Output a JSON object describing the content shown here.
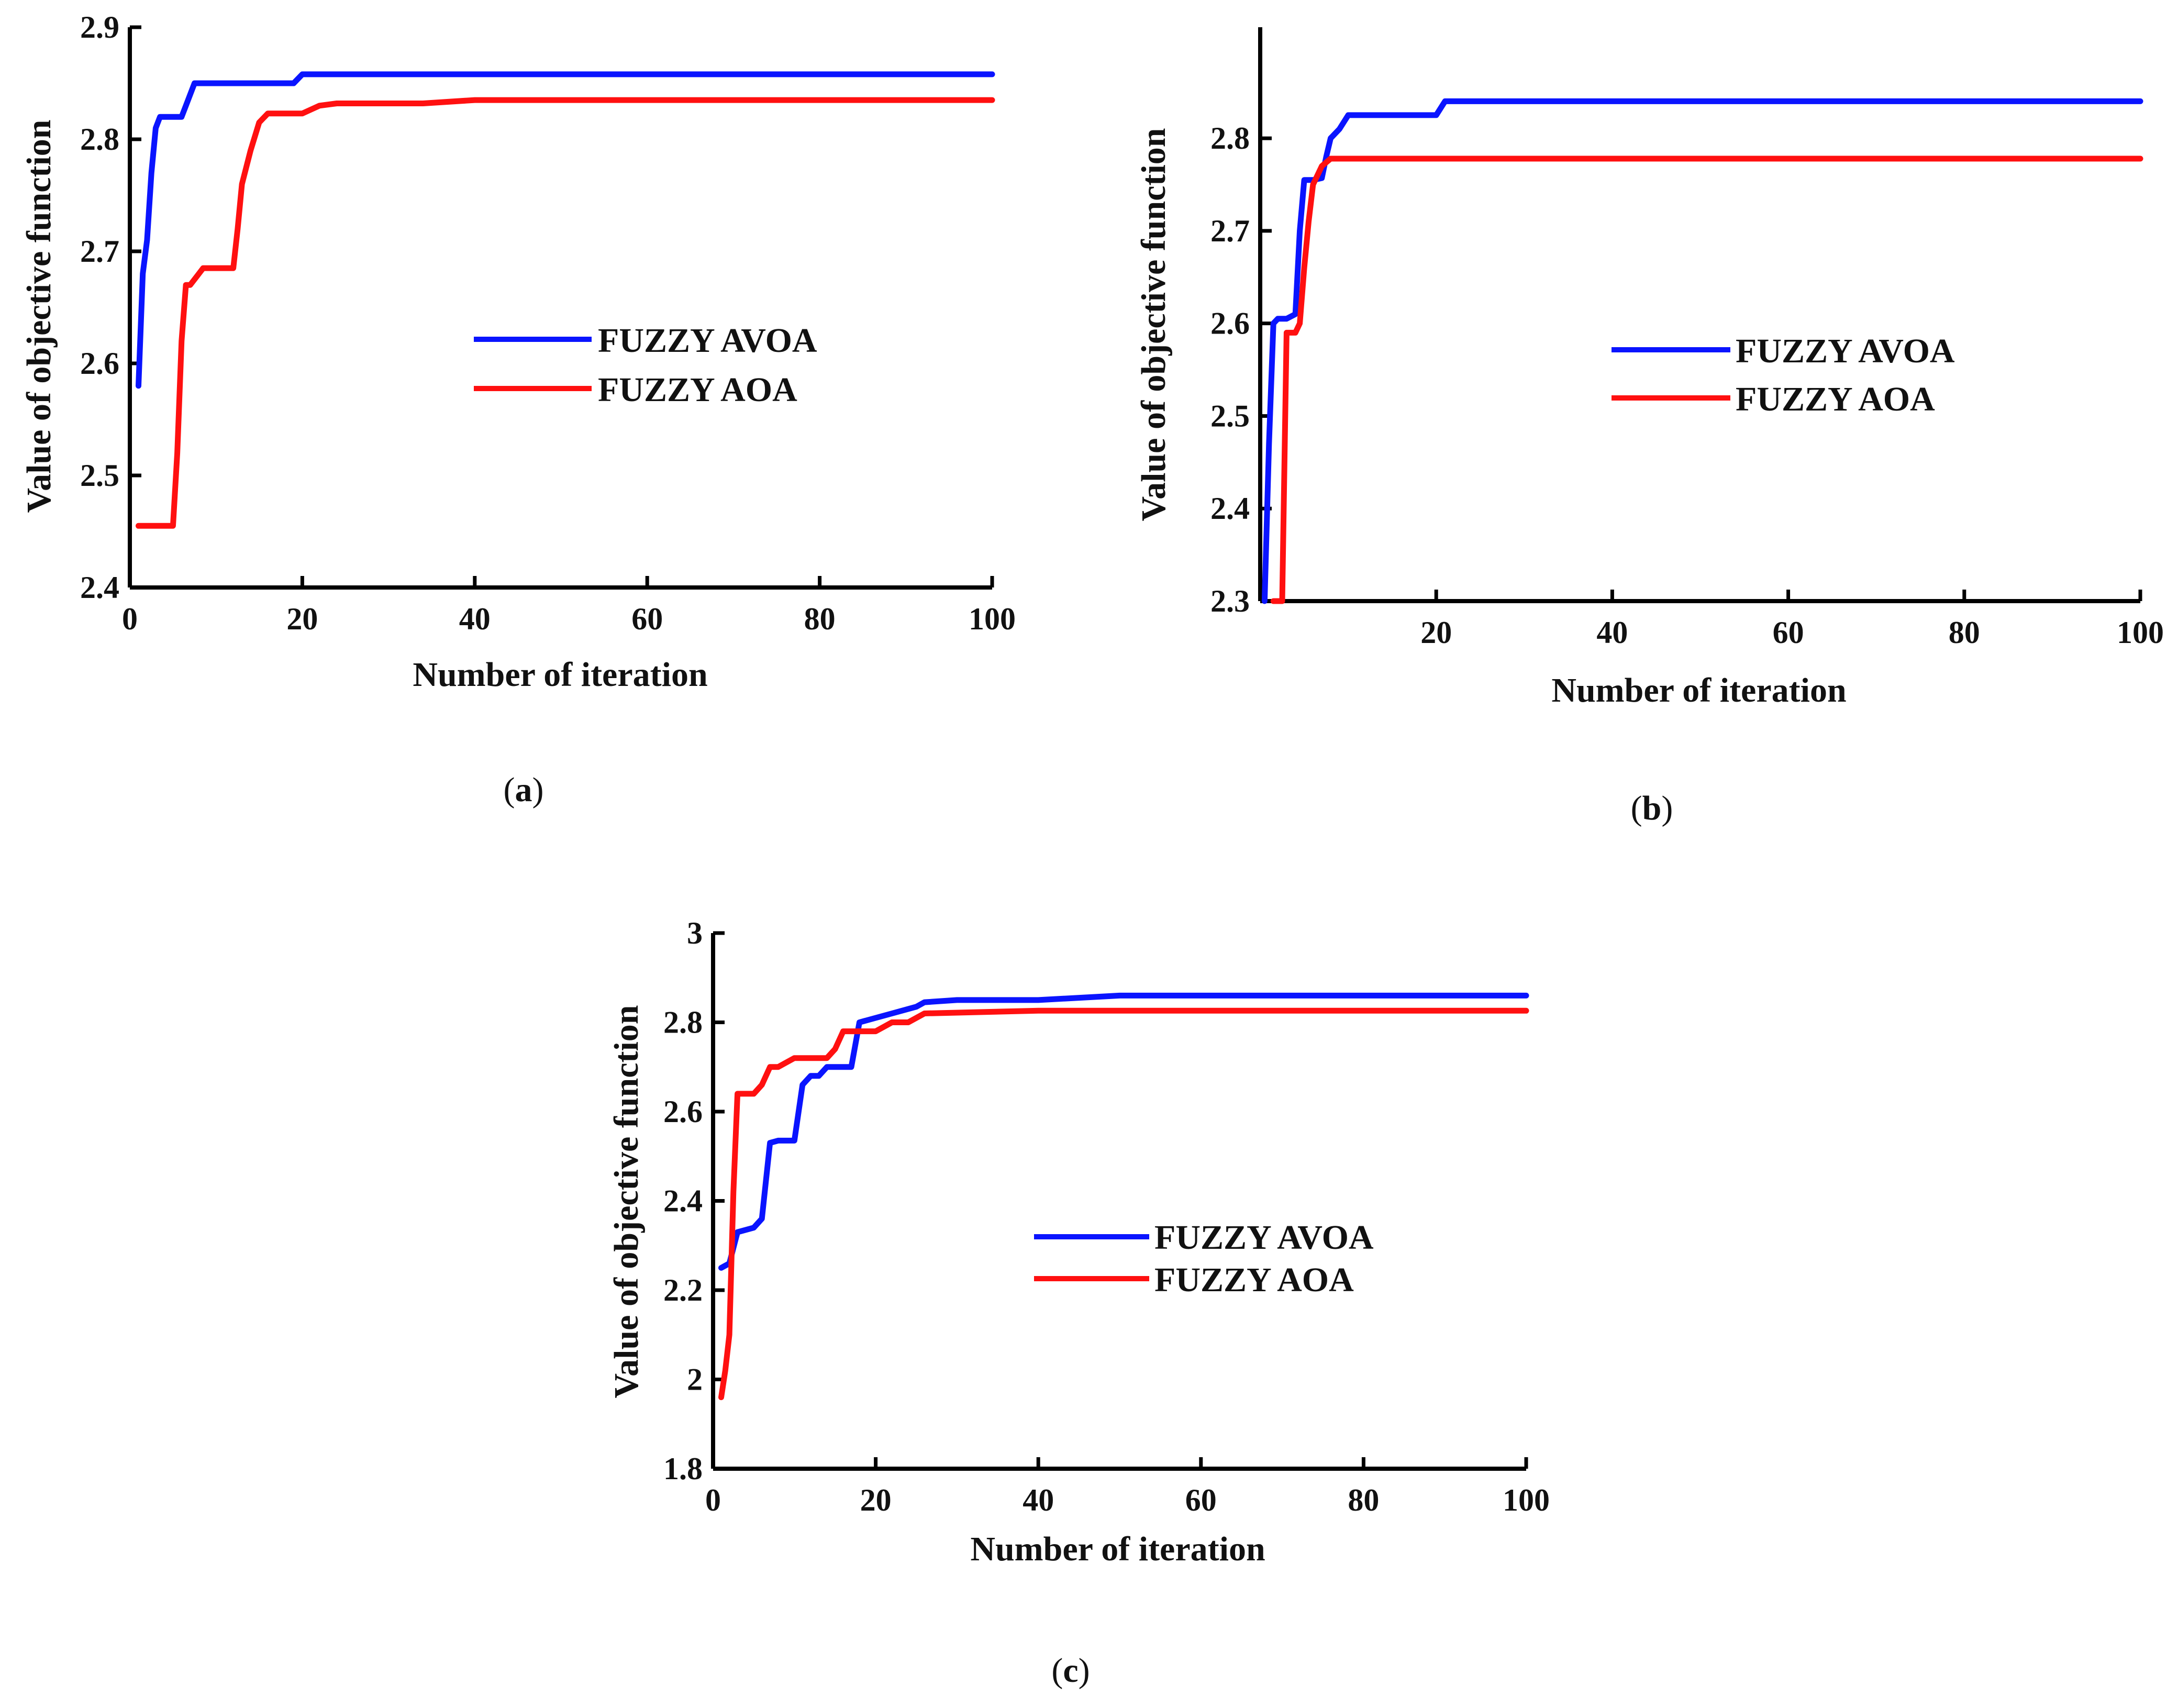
{
  "colors": {
    "fuzzy_avoa": "#0a14ff",
    "fuzzy_aoa": "#ff1010",
    "axis": "#000000"
  },
  "chart_data": [
    {
      "panel": "(a)",
      "panel_letter": "a",
      "type": "line",
      "xlabel": "Number of iteration",
      "ylabel": "Value of objective function",
      "xlim": [
        0,
        100
      ],
      "ylim": [
        2.4,
        2.9
      ],
      "xticks": [
        0,
        20,
        40,
        60,
        80,
        100
      ],
      "yticks": [
        2.4,
        2.5,
        2.6,
        2.7,
        2.8,
        2.9
      ],
      "xtick_labels": [
        "0",
        "20",
        "40",
        "60",
        "80",
        "100"
      ],
      "ytick_labels": [
        "2.4",
        "2.5",
        "2.6",
        "2.7",
        "2.8",
        "2.9"
      ],
      "legend_position": "center-right",
      "series": [
        {
          "name": "FUZZY AVOA",
          "color": "#0a14ff",
          "x": [
            1,
            1.5,
            2,
            2.5,
            3,
            3.5,
            4,
            6,
            6.5,
            7,
            7.5,
            19,
            20,
            100
          ],
          "y": [
            2.58,
            2.68,
            2.71,
            2.77,
            2.81,
            2.82,
            2.82,
            2.82,
            2.83,
            2.84,
            2.85,
            2.85,
            2.858,
            2.858
          ]
        },
        {
          "name": "FUZZY AOA",
          "color": "#ff1010",
          "x": [
            1,
            5,
            5.5,
            6,
            6.5,
            7,
            8,
            8.5,
            12,
            12.5,
            13,
            14,
            15,
            16,
            20,
            22,
            24,
            34,
            40,
            100
          ],
          "y": [
            2.455,
            2.455,
            2.52,
            2.62,
            2.67,
            2.67,
            2.68,
            2.685,
            2.685,
            2.72,
            2.76,
            2.79,
            2.815,
            2.823,
            2.823,
            2.83,
            2.832,
            2.832,
            2.835,
            2.835
          ]
        }
      ]
    },
    {
      "panel": "(b)",
      "panel_letter": "b",
      "type": "line",
      "xlabel": "Number of iteration",
      "ylabel": "Value of objective function",
      "xlim": [
        0,
        100
      ],
      "ylim": [
        2.3,
        2.92
      ],
      "xticks": [
        20,
        40,
        60,
        80,
        100
      ],
      "yticks": [
        2.3,
        2.4,
        2.5,
        2.6,
        2.7,
        2.8
      ],
      "xtick_labels": [
        "20",
        "40",
        "60",
        "80",
        "100"
      ],
      "ytick_labels": [
        "2.3",
        "2.4",
        "2.5",
        "2.6",
        "2.7",
        "2.8"
      ],
      "legend_position": "center-right",
      "series": [
        {
          "name": "FUZZY AVOA",
          "color": "#0a14ff",
          "x": [
            0.5,
            1,
            1.5,
            2,
            3,
            4,
            4.5,
            5,
            6,
            7,
            7.5,
            8,
            9,
            10,
            20,
            21,
            100
          ],
          "y": [
            2.3,
            2.47,
            2.6,
            2.605,
            2.605,
            2.61,
            2.7,
            2.755,
            2.755,
            2.757,
            2.78,
            2.8,
            2.81,
            2.825,
            2.825,
            2.84,
            2.84
          ]
        },
        {
          "name": "FUZZY AOA",
          "color": "#ff1010",
          "x": [
            1.5,
            2.5,
            3,
            4,
            4.5,
            5,
            5.5,
            6,
            7,
            8,
            100
          ],
          "y": [
            2.3,
            2.3,
            2.59,
            2.59,
            2.6,
            2.66,
            2.71,
            2.75,
            2.77,
            2.778,
            2.778
          ]
        }
      ]
    },
    {
      "panel": "(c)",
      "panel_letter": "c",
      "type": "line",
      "xlabel": "Number of iteration",
      "ylabel": "Value of objective function",
      "xlim": [
        0,
        100
      ],
      "ylim": [
        1.8,
        3.0
      ],
      "xticks": [
        0,
        20,
        40,
        60,
        80,
        100
      ],
      "yticks": [
        1.8,
        2.0,
        2.2,
        2.4,
        2.6,
        2.8,
        3.0
      ],
      "xtick_labels": [
        "0",
        "20",
        "40",
        "60",
        "80",
        "100"
      ],
      "ytick_labels": [
        "1.8",
        "2",
        "2.2",
        "2.4",
        "2.6",
        "2.8",
        "3"
      ],
      "legend_position": "center-right",
      "series": [
        {
          "name": "FUZZY AVOA",
          "color": "#0a14ff",
          "x": [
            1,
            2,
            3,
            5,
            6,
            7,
            8,
            10,
            11,
            12,
            13,
            14,
            17,
            18,
            20,
            22,
            25,
            26,
            30,
            40,
            50,
            100
          ],
          "y": [
            2.25,
            2.26,
            2.33,
            2.34,
            2.36,
            2.53,
            2.535,
            2.535,
            2.66,
            2.68,
            2.68,
            2.7,
            2.7,
            2.8,
            2.81,
            2.82,
            2.835,
            2.845,
            2.85,
            2.85,
            2.86,
            2.86
          ]
        },
        {
          "name": "FUZZY AOA",
          "color": "#ff1010",
          "x": [
            1,
            1.5,
            2,
            2.5,
            3,
            5,
            6,
            7,
            8,
            9,
            10,
            14,
            15,
            16,
            20,
            22,
            24,
            26,
            40,
            100
          ],
          "y": [
            1.96,
            2.02,
            2.1,
            2.42,
            2.64,
            2.64,
            2.66,
            2.7,
            2.7,
            2.71,
            2.72,
            2.72,
            2.74,
            2.78,
            2.78,
            2.8,
            2.8,
            2.82,
            2.826,
            2.826
          ]
        }
      ]
    }
  ]
}
